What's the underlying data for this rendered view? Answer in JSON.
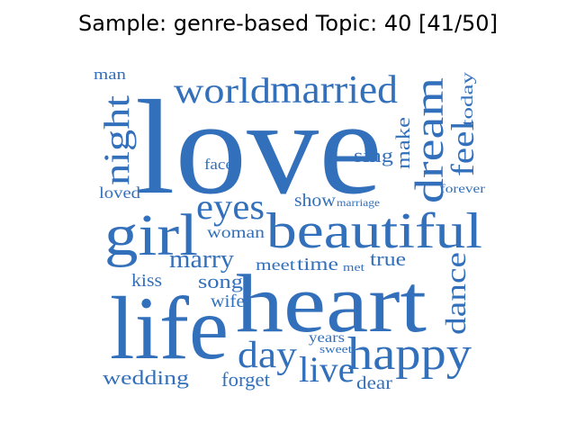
{
  "title": "Sample: genre-based Topic: 40 [41/50]",
  "color": "#3370bb",
  "words": [
    {
      "id": "love",
      "text": "love"
    },
    {
      "id": "heart",
      "text": "heart"
    },
    {
      "id": "life",
      "text": "life"
    },
    {
      "id": "beautiful",
      "text": "beautiful"
    },
    {
      "id": "girl",
      "text": "girl"
    },
    {
      "id": "happy",
      "text": "happy"
    },
    {
      "id": "dream",
      "text": "dream"
    },
    {
      "id": "married",
      "text": "married"
    },
    {
      "id": "world",
      "text": "world"
    },
    {
      "id": "night",
      "text": "night"
    },
    {
      "id": "eyes",
      "text": "eyes"
    },
    {
      "id": "day",
      "text": "day"
    },
    {
      "id": "live",
      "text": "live"
    },
    {
      "id": "dance",
      "text": "dance"
    },
    {
      "id": "feel",
      "text": "feel"
    },
    {
      "id": "marry",
      "text": "marry"
    },
    {
      "id": "wedding",
      "text": "wedding"
    },
    {
      "id": "make",
      "text": "make"
    },
    {
      "id": "today",
      "text": "today"
    },
    {
      "id": "sing",
      "text": "sing"
    },
    {
      "id": "woman",
      "text": "woman"
    },
    {
      "id": "time",
      "text": "time"
    },
    {
      "id": "meet",
      "text": "meet"
    },
    {
      "id": "true",
      "text": "true"
    },
    {
      "id": "song",
      "text": "song"
    },
    {
      "id": "show",
      "text": "show"
    },
    {
      "id": "forget",
      "text": "forget"
    },
    {
      "id": "dear",
      "text": "dear"
    },
    {
      "id": "kiss",
      "text": "kiss"
    },
    {
      "id": "wife",
      "text": "wife"
    },
    {
      "id": "loved",
      "text": "loved"
    },
    {
      "id": "face",
      "text": "face"
    },
    {
      "id": "years",
      "text": "years"
    },
    {
      "id": "man",
      "text": "man"
    },
    {
      "id": "forever",
      "text": "forever"
    },
    {
      "id": "sweet",
      "text": "sweet"
    },
    {
      "id": "marriage",
      "text": "marriage"
    },
    {
      "id": "met",
      "text": "met"
    }
  ]
}
